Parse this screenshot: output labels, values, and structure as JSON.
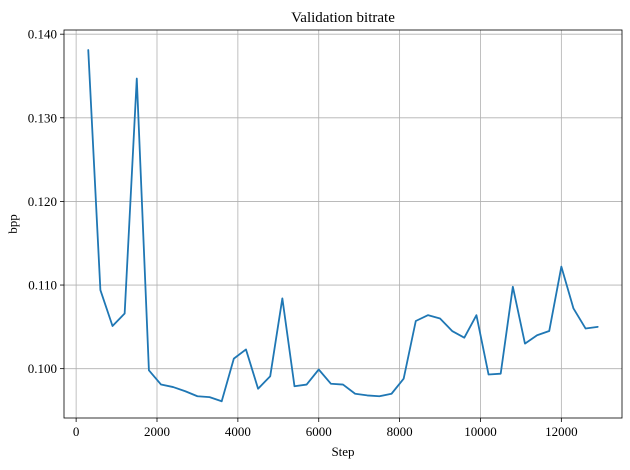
{
  "chart_data": {
    "type": "line",
    "title": "Validation bitrate",
    "xlabel": "Step",
    "ylabel": "bpp",
    "xlim": [
      -300,
      13500
    ],
    "ylim": [
      0.0941,
      0.1405
    ],
    "xticks": [
      0,
      2000,
      4000,
      6000,
      8000,
      10000,
      12000
    ],
    "xtick_labels": [
      "0",
      "2000",
      "4000",
      "6000",
      "8000",
      "10000",
      "12000"
    ],
    "yticks": [
      0.1,
      0.11,
      0.12,
      0.13,
      0.14
    ],
    "ytick_labels": [
      "0.100",
      "0.110",
      "0.120",
      "0.130",
      "0.140"
    ],
    "grid": true,
    "series": [
      {
        "color": "#1f77b4",
        "x": [
          300,
          600,
          900,
          1200,
          1500,
          1800,
          2100,
          2400,
          2700,
          3000,
          3300,
          3600,
          3900,
          4200,
          4500,
          4800,
          5100,
          5400,
          5700,
          6000,
          6300,
          6600,
          6900,
          7200,
          7500,
          7800,
          8100,
          8400,
          8700,
          9000,
          9300,
          9600,
          9900,
          10200,
          10500,
          10800,
          11100,
          11400,
          11700,
          12000,
          12300,
          12600,
          12900
        ],
        "y": [
          0.1381,
          0.1094,
          0.1051,
          0.1066,
          0.1347,
          0.0998,
          0.0981,
          0.0978,
          0.0973,
          0.0967,
          0.0966,
          0.0961,
          0.1012,
          0.1023,
          0.0976,
          0.0991,
          0.1084,
          0.0979,
          0.0981,
          0.0999,
          0.0982,
          0.0981,
          0.097,
          0.0968,
          0.0967,
          0.097,
          0.0988,
          0.1057,
          0.1064,
          0.106,
          0.1045,
          0.1037,
          0.1064,
          0.0993,
          0.0994,
          0.1098,
          0.103,
          0.104,
          0.1045,
          0.1122,
          0.1072,
          0.1048,
          0.105
        ]
      }
    ]
  }
}
